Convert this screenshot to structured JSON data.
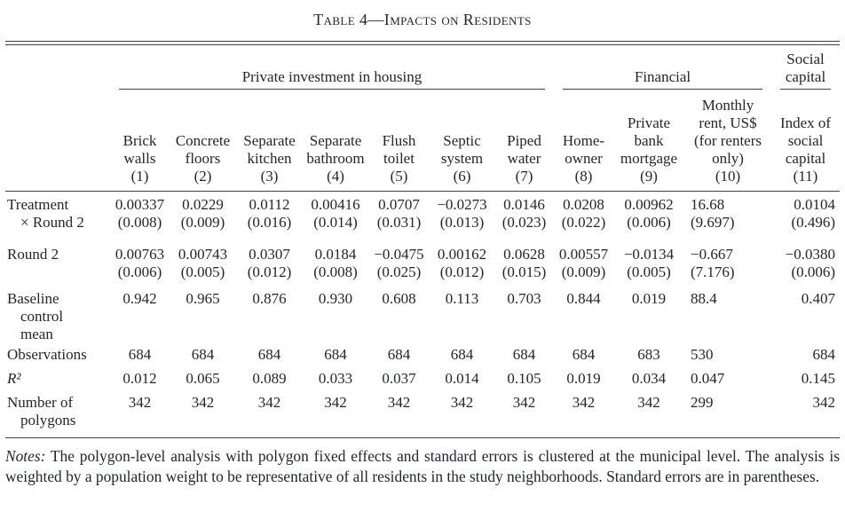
{
  "title": "Table 4—Impacts on Residents",
  "table": {
    "groups": [
      {
        "lines": [
          "Private investment in housing"
        ],
        "span": 7
      },
      {
        "lines": [
          "Financial"
        ],
        "span": 3
      },
      {
        "lines": [
          "Social",
          "capital"
        ],
        "span": 1
      }
    ],
    "columns": [
      {
        "lines": [
          "Brick",
          "walls"
        ],
        "number": "(1)"
      },
      {
        "lines": [
          "Concrete",
          "floors"
        ],
        "number": "(2)"
      },
      {
        "lines": [
          "Separate",
          "kitchen"
        ],
        "number": "(3)"
      },
      {
        "lines": [
          "Separate",
          "bathroom"
        ],
        "number": "(4)"
      },
      {
        "lines": [
          "Flush",
          "toilet"
        ],
        "number": "(5)"
      },
      {
        "lines": [
          "Septic",
          "system"
        ],
        "number": "(6)"
      },
      {
        "lines": [
          "Piped",
          "water"
        ],
        "number": "(7)"
      },
      {
        "lines": [
          "Home-",
          "owner"
        ],
        "number": "(8)"
      },
      {
        "lines": [
          "Private",
          "bank",
          "mortgage"
        ],
        "number": "(9)"
      },
      {
        "lines": [
          "Monthly",
          "rent, US$",
          "(for renters",
          "only)"
        ],
        "number": "(10)"
      },
      {
        "lines": [
          "Index of",
          "social",
          "capital"
        ],
        "number": "(11)"
      }
    ],
    "rows": [
      {
        "label_lines": [
          "Treatment",
          "× Round 2"
        ],
        "values": [
          "0.00337",
          "0.0229",
          "0.0112",
          "0.00416",
          "0.0707",
          "−0.0273",
          "0.0146",
          "0.0208",
          "0.00962",
          "16.68",
          "0.0104"
        ],
        "se": [
          "(0.008)",
          "(0.009)",
          "(0.016)",
          "(0.014)",
          "(0.031)",
          "(0.013)",
          "(0.023)",
          "(0.022)",
          "(0.006)",
          "(9.697)",
          "(0.496)"
        ]
      },
      {
        "label_lines": [
          "Round 2"
        ],
        "values": [
          "0.00763",
          "0.00743",
          "0.0307",
          "0.0184",
          "−0.0475",
          "0.00162",
          "0.0628",
          "0.00557",
          "−0.0134",
          "−0.667",
          "−0.0380"
        ],
        "se": [
          "(0.006)",
          "(0.005)",
          "(0.012)",
          "(0.008)",
          "(0.025)",
          "(0.012)",
          "(0.015)",
          "(0.009)",
          "(0.005)",
          "(7.176)",
          "(0.006)"
        ]
      },
      {
        "label_lines": [
          "Baseline",
          "control",
          "mean"
        ],
        "values": [
          "0.942",
          "0.965",
          "0.876",
          "0.930",
          "0.608",
          "0.113",
          "0.703",
          "0.844",
          "0.019",
          "88.4",
          "0.407"
        ]
      },
      {
        "label_lines": [
          "Observations"
        ],
        "values": [
          "684",
          "684",
          "684",
          "684",
          "684",
          "684",
          "684",
          "684",
          "683",
          "530",
          "684"
        ]
      },
      {
        "label_lines": [
          "R²"
        ],
        "italic_label": true,
        "values": [
          "0.012",
          "0.065",
          "0.089",
          "0.033",
          "0.037",
          "0.014",
          "0.105",
          "0.019",
          "0.034",
          "0.047",
          "0.145"
        ]
      },
      {
        "label_lines": [
          "Number of",
          "polygons"
        ],
        "values": [
          "342",
          "342",
          "342",
          "342",
          "342",
          "342",
          "342",
          "342",
          "342",
          "299",
          "342"
        ]
      }
    ]
  },
  "notes": {
    "label": "Notes:",
    "text": " The polygon-level analysis with polygon fixed effects and standard errors is clustered at the municipal level. The analysis is weighted by a population weight to be representative of all residents in the study neighborhoods. Standard errors are in parentheses."
  }
}
